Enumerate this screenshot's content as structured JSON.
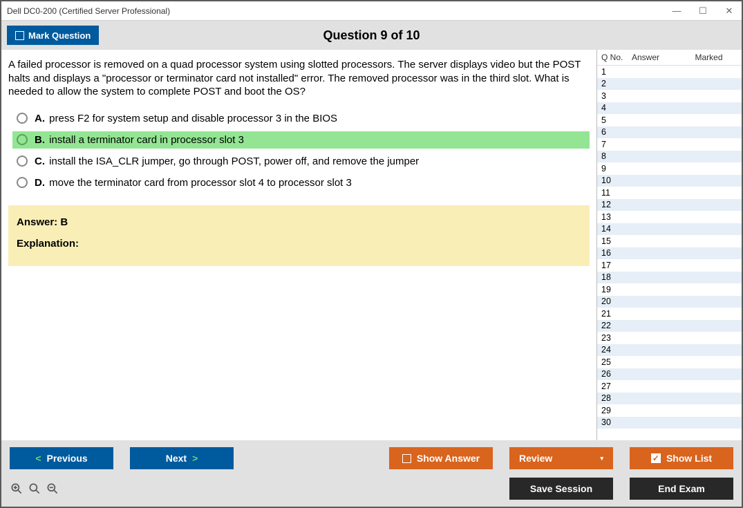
{
  "window": {
    "title": "Dell DC0-200 (Certified Server Professional)"
  },
  "topbar": {
    "mark_label": "Mark Question",
    "heading": "Question 9 of 10"
  },
  "question": {
    "text": "A failed processor is removed on a quad processor system using slotted processors. The server displays video but the POST halts and displays a \"processor or terminator card not installed\" error. The removed processor was in the third slot. What is needed to allow the system to complete POST and boot the OS?",
    "choices": [
      {
        "letter": "A.",
        "text": "press F2 for system setup and disable processor 3 in the BIOS",
        "correct": false
      },
      {
        "letter": "B.",
        "text": "install a terminator card in processor slot 3",
        "correct": true
      },
      {
        "letter": "C.",
        "text": "install the ISA_CLR jumper, go through POST, power off, and remove the jumper",
        "correct": false
      },
      {
        "letter": "D.",
        "text": "move the terminator card from processor slot 4 to processor slot 3",
        "correct": false
      }
    ]
  },
  "answer_box": {
    "answer_label": "Answer: B",
    "explanation_label": "Explanation:"
  },
  "side": {
    "col_q": "Q No.",
    "col_ans": "Answer",
    "col_mark": "Marked",
    "row_count": 30
  },
  "buttons": {
    "previous": "Previous",
    "next": "Next",
    "show_answer": "Show Answer",
    "review": "Review",
    "show_list": "Show List",
    "save_session": "Save Session",
    "end_exam": "End Exam"
  },
  "colors": {
    "blue": "#005a9e",
    "orange": "#d9641e",
    "dark": "#282828",
    "correct_bg": "#93e593",
    "answer_bg": "#f9eeb6",
    "toolbar_bg": "#e1e1e1",
    "alt_row": "#e6eef7"
  }
}
